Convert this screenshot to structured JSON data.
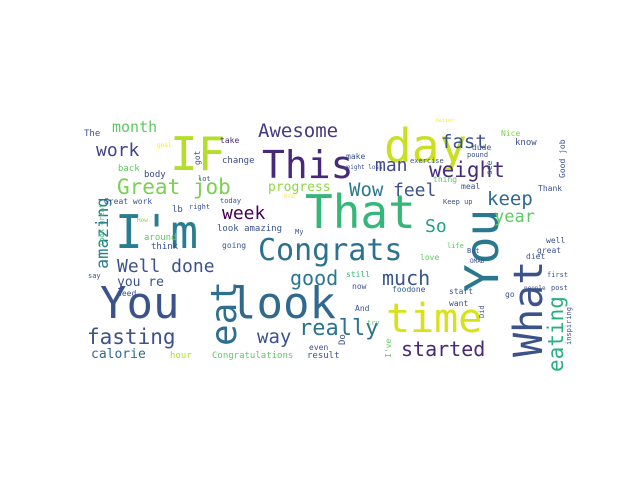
{
  "words": [
    {
      "text": "You",
      "color": "#3b528b"
    },
    {
      "text": "look",
      "color": "#31688e"
    },
    {
      "text": "I'm",
      "color": "#287d8e"
    },
    {
      "text": "IF",
      "color": "#b5de2b"
    },
    {
      "text": "This",
      "color": "#482878"
    },
    {
      "text": "day",
      "color": "#c8e020"
    },
    {
      "text": "That",
      "color": "#35b779"
    },
    {
      "text": "You",
      "color": "#2a788e"
    },
    {
      "text": "What",
      "color": "#3b528b"
    },
    {
      "text": "time",
      "color": "#d8e219"
    },
    {
      "text": "Congrats",
      "color": "#2c728e"
    },
    {
      "text": "eat",
      "color": "#2e6e8e"
    },
    {
      "text": "Awesome",
      "color": "#443a83"
    },
    {
      "text": "weight",
      "color": "#472d7b"
    },
    {
      "text": "fast",
      "color": "#3b528b"
    },
    {
      "text": "keep",
      "color": "#31688e"
    },
    {
      "text": "eating",
      "color": "#29af7f"
    },
    {
      "text": "Great job",
      "color": "#7ad151"
    },
    {
      "text": "work",
      "color": "#414487"
    },
    {
      "text": "month",
      "color": "#5ec962"
    },
    {
      "text": "man",
      "color": "#3e4a89"
    },
    {
      "text": "Wow",
      "color": "#2a788e"
    },
    {
      "text": "feel",
      "color": "#3b528b"
    },
    {
      "text": "really",
      "color": "#2c728e"
    },
    {
      "text": "good",
      "color": "#2a788e"
    },
    {
      "text": "much",
      "color": "#39568c"
    },
    {
      "text": "fasting",
      "color": "#3b528b"
    },
    {
      "text": "way",
      "color": "#3b528b"
    },
    {
      "text": "started",
      "color": "#482878"
    },
    {
      "text": "Well done",
      "color": "#3b528b"
    },
    {
      "text": "week",
      "color": "#440154"
    },
    {
      "text": "amazing",
      "color": "#287d8e"
    },
    {
      "text": "year",
      "color": "#5ec962"
    },
    {
      "text": "So",
      "color": "#1fa188"
    },
    {
      "text": "calorie",
      "color": "#31688e"
    },
    {
      "text": "you re",
      "color": "#3b528b"
    },
    {
      "text": "progress",
      "color": "#8fd744"
    },
    {
      "text": "The",
      "color": "#3b528b"
    },
    {
      "text": "back",
      "color": "#5ec962"
    },
    {
      "text": "body",
      "color": "#3e4a89"
    },
    {
      "text": "goal",
      "color": "#fde725"
    },
    {
      "text": "take",
      "color": "#482878"
    },
    {
      "text": "lot",
      "color": "#3b528b"
    },
    {
      "text": "got",
      "color": "#39568c"
    },
    {
      "text": "change",
      "color": "#3e4a89"
    },
    {
      "text": "Great work",
      "color": "#3b528b"
    },
    {
      "text": "lb",
      "color": "#3b528b"
    },
    {
      "text": "right",
      "color": "#3b528b"
    },
    {
      "text": "today",
      "color": "#3b528b"
    },
    {
      "text": "How",
      "color": "#8fd744"
    },
    {
      "text": "look great",
      "color": "#35b779"
    },
    {
      "text": "need",
      "color": "#3b528b"
    },
    {
      "text": "around",
      "color": "#5ec962"
    },
    {
      "text": "think",
      "color": "#3b528b"
    },
    {
      "text": "look amazing",
      "color": "#3b528b"
    },
    {
      "text": "going",
      "color": "#3b528b"
    },
    {
      "text": "My",
      "color": "#3b528b"
    },
    {
      "text": "hour",
      "color": "#b5de2b"
    },
    {
      "text": "Congratulations",
      "color": "#5ec962"
    },
    {
      "text": "result",
      "color": "#3b528b"
    },
    {
      "text": "Do",
      "color": "#3b528b"
    },
    {
      "text": "make",
      "color": "#3b528b"
    },
    {
      "text": "weight loss",
      "color": "#3b528b"
    },
    {
      "text": "even",
      "color": "#3b528b"
    },
    {
      "text": "exercise",
      "color": "#3b528b"
    },
    {
      "text": "bre",
      "color": "#fde725"
    },
    {
      "text": "still",
      "color": "#35b779"
    },
    {
      "text": "now",
      "color": "#3b528b"
    },
    {
      "text": "And",
      "color": "#3b528b"
    },
    {
      "text": "food",
      "color": "#31688e"
    },
    {
      "text": "one",
      "color": "#3b528b"
    },
    {
      "text": "try",
      "color": "#5ec962"
    },
    {
      "text": "I've",
      "color": "#5ec962"
    },
    {
      "text": "love",
      "color": "#5ec962"
    },
    {
      "text": "better",
      "color": "#fde725"
    },
    {
      "text": "dude",
      "color": "#3b528b"
    },
    {
      "text": "pound",
      "color": "#3b528b"
    },
    {
      "text": "thing",
      "color": "#5ec962"
    },
    {
      "text": "meal",
      "color": "#3b528b"
    },
    {
      "text": "see",
      "color": "#3b528b"
    },
    {
      "text": "Nice",
      "color": "#7ad151"
    },
    {
      "text": "Keep up",
      "color": "#3b528b"
    },
    {
      "text": "know",
      "color": "#3b528b"
    },
    {
      "text": "Good job",
      "color": "#3b528b"
    },
    {
      "text": "Thank",
      "color": "#3b528b"
    },
    {
      "text": "But",
      "color": "#3b528b"
    },
    {
      "text": "OMAD",
      "color": "#3b528b"
    },
    {
      "text": "diet",
      "color": "#3b528b"
    },
    {
      "text": "great",
      "color": "#3b528b"
    },
    {
      "text": "well",
      "color": "#3b528b"
    },
    {
      "text": "life",
      "color": "#5ec962"
    },
    {
      "text": "first",
      "color": "#3b528b"
    },
    {
      "text": "start",
      "color": "#3b528b"
    },
    {
      "text": "want",
      "color": "#3b528b"
    },
    {
      "text": "go",
      "color": "#3b528b"
    },
    {
      "text": "post",
      "color": "#3b528b"
    },
    {
      "text": "people",
      "color": "#3b528b"
    },
    {
      "text": "inspiring",
      "color": "#3b528b"
    },
    {
      "text": "Did",
      "color": "#3b528b"
    },
    {
      "text": "say",
      "color": "#3b528b"
    }
  ]
}
